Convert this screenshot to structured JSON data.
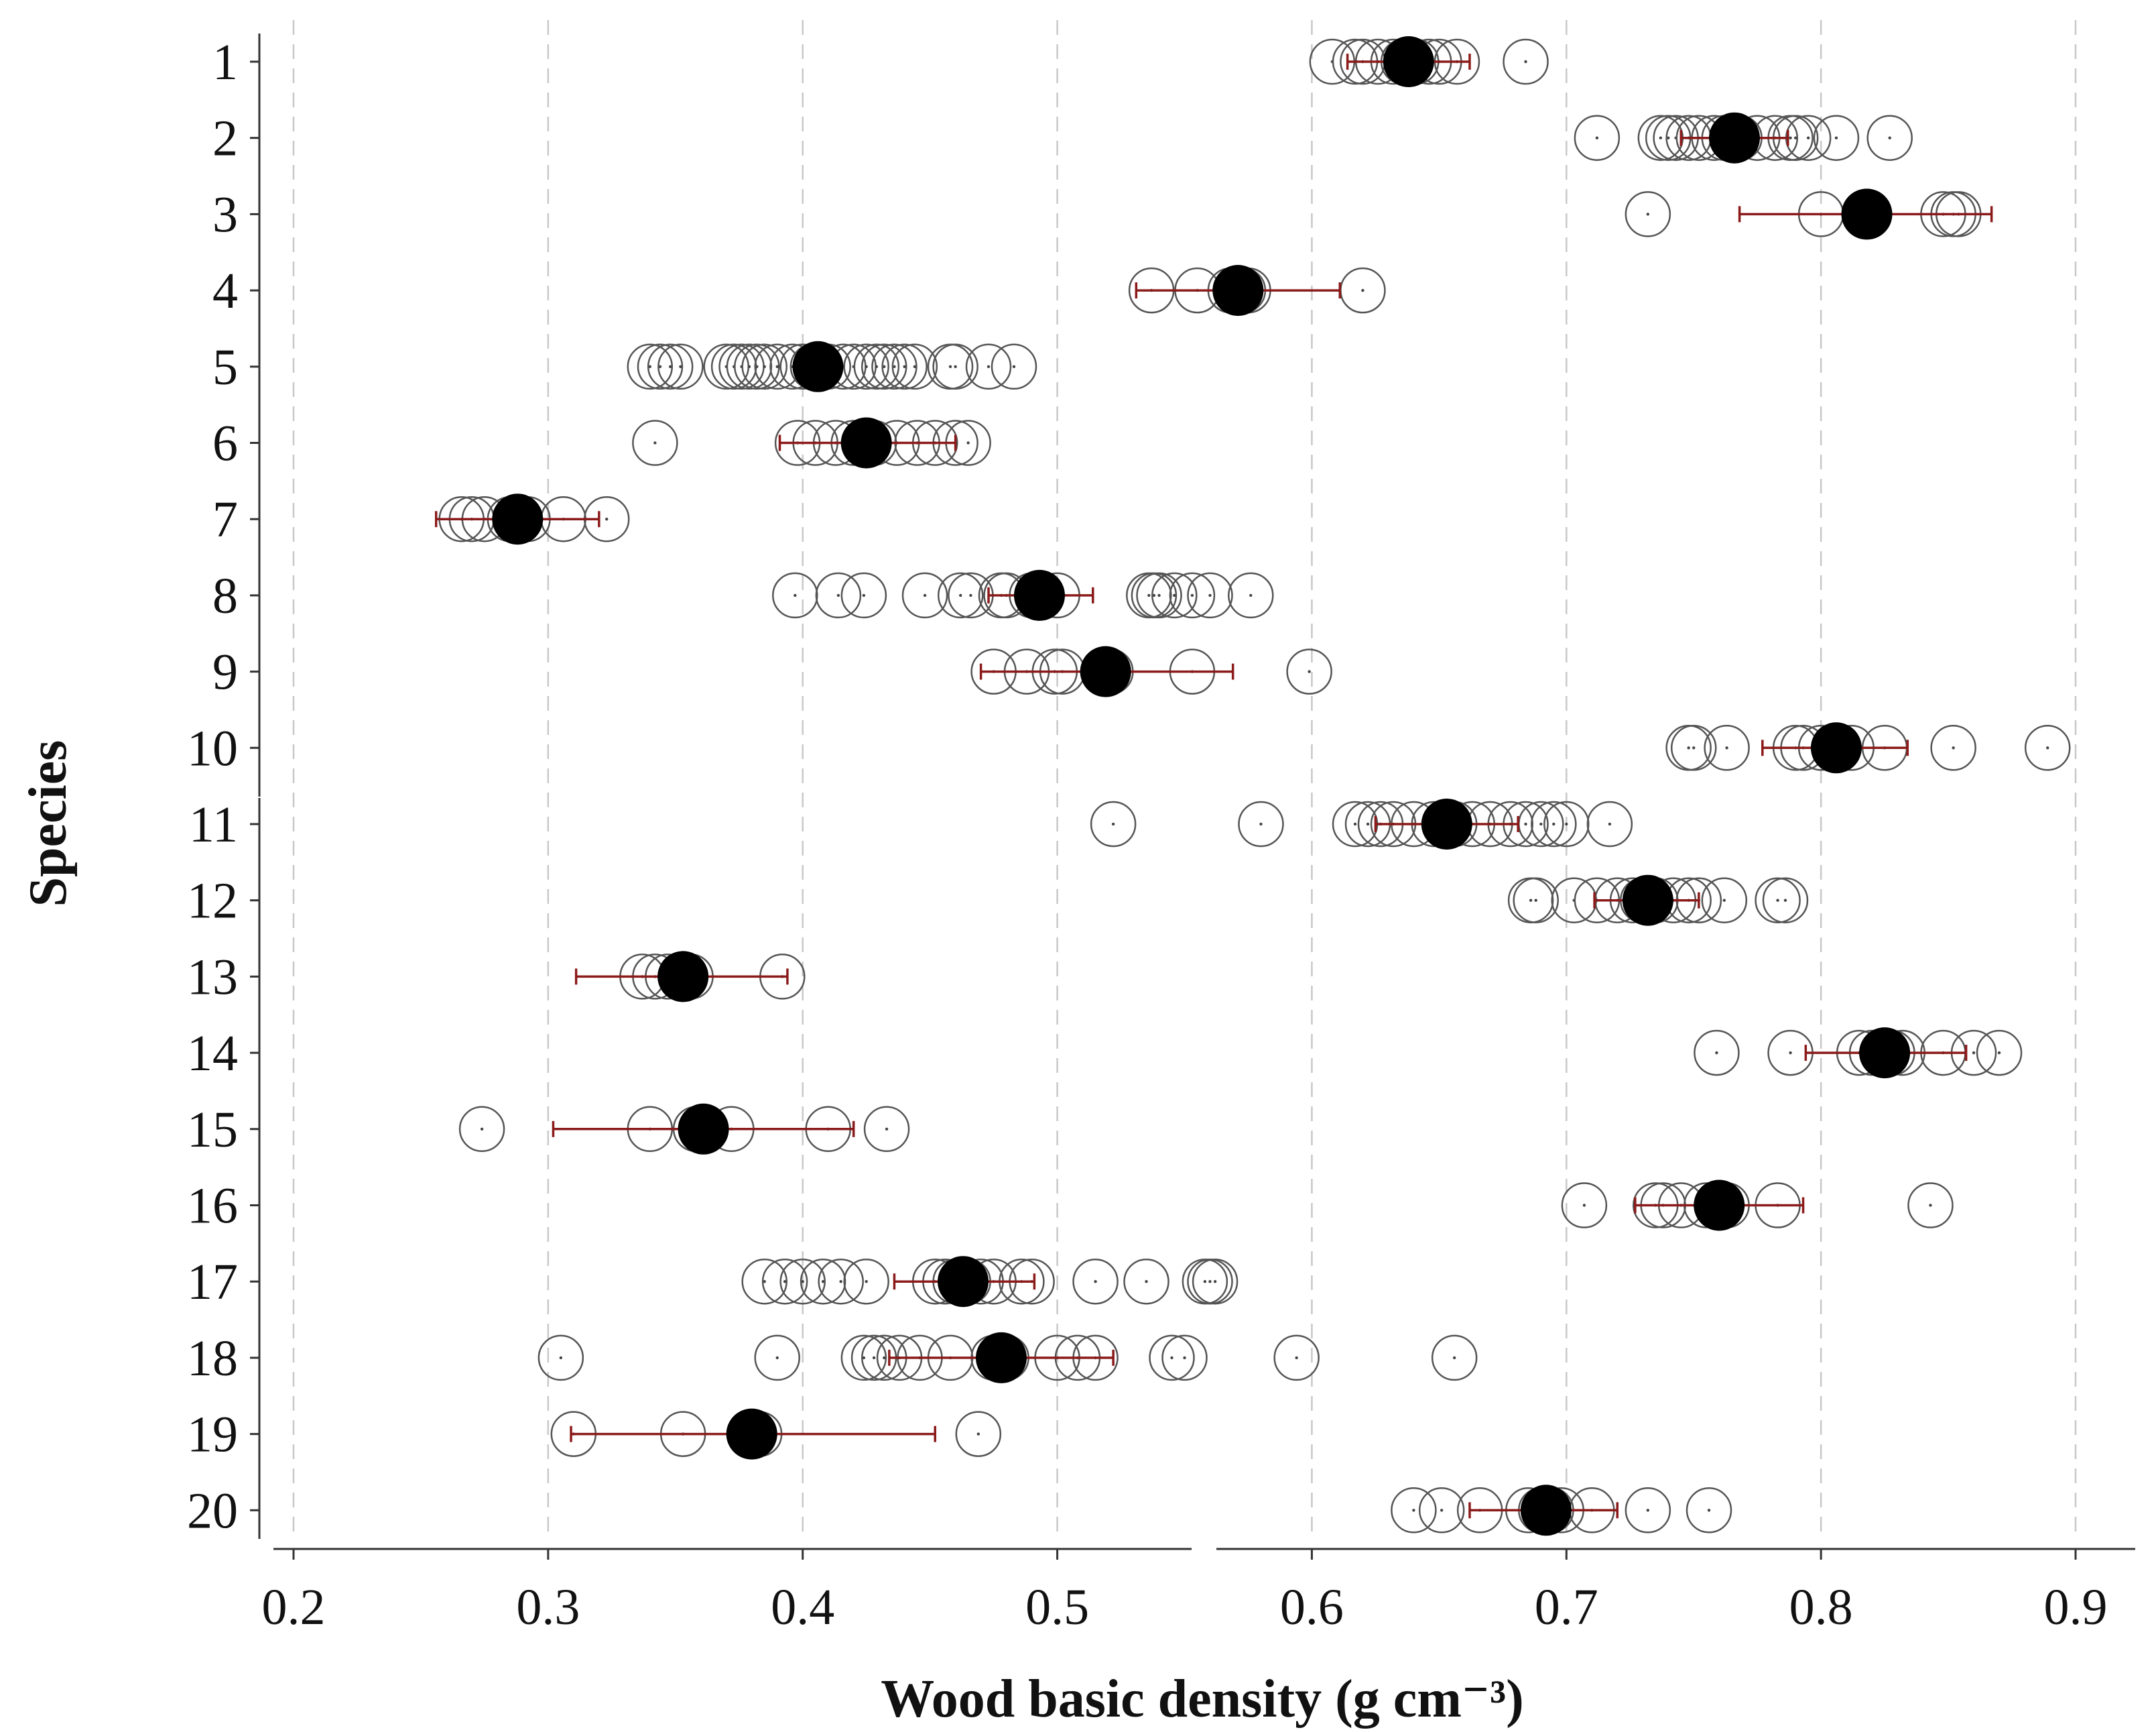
{
  "chart_data": {
    "type": "scatter",
    "title": "",
    "xlabel": "Wood basic density (g cm⁻³)",
    "ylabel": "Species",
    "xlim": [
      0.2,
      0.9
    ],
    "x_ticks": [
      "0.2",
      "0.3",
      "0.4",
      "0.5",
      "0.6",
      "0.7",
      "0.8",
      "0.9"
    ],
    "x_tick_values": [
      0.2,
      0.3,
      0.4,
      0.5,
      0.6,
      0.7,
      0.8,
      0.9
    ],
    "grid": "vertical dashed",
    "categories": [
      "1",
      "2",
      "3",
      "4",
      "5",
      "6",
      "7",
      "8",
      "9",
      "10",
      "11",
      "12",
      "13",
      "14",
      "15",
      "16",
      "17",
      "18",
      "19",
      "20"
    ],
    "series": [
      {
        "name": "1",
        "mean": 0.638,
        "err_low": 0.614,
        "err_high": 0.662,
        "observations": [
          0.608,
          0.617,
          0.62,
          0.626,
          0.632,
          0.636,
          0.641,
          0.646,
          0.65,
          0.657,
          0.684
        ]
      },
      {
        "name": "2",
        "mean": 0.766,
        "err_low": 0.745,
        "err_high": 0.787,
        "observations": [
          0.712,
          0.737,
          0.74,
          0.743,
          0.748,
          0.752,
          0.758,
          0.762,
          0.768,
          0.775,
          0.782,
          0.788,
          0.79,
          0.795,
          0.806,
          0.827
        ]
      },
      {
        "name": "3",
        "mean": 0.818,
        "err_low": 0.768,
        "err_high": 0.867,
        "observations": [
          0.732,
          0.8,
          0.818,
          0.848,
          0.852,
          0.854
        ]
      },
      {
        "name": "4",
        "mean": 0.571,
        "err_low": 0.531,
        "err_high": 0.611,
        "observations": [
          0.537,
          0.555,
          0.568,
          0.573,
          0.575,
          0.62
        ]
      },
      {
        "name": "5",
        "mean": 0.406,
        "err_low": 0.406,
        "err_high": 0.406,
        "observations": [
          0.34,
          0.344,
          0.348,
          0.352,
          0.37,
          0.373,
          0.376,
          0.379,
          0.382,
          0.385,
          0.39,
          0.396,
          0.4,
          0.404,
          0.41,
          0.416,
          0.42,
          0.425,
          0.429,
          0.432,
          0.436,
          0.44,
          0.444,
          0.458,
          0.46,
          0.473,
          0.483
        ]
      },
      {
        "name": "6",
        "mean": 0.425,
        "err_low": 0.391,
        "err_high": 0.46,
        "observations": [
          0.342,
          0.398,
          0.405,
          0.413,
          0.42,
          0.428,
          0.437,
          0.445,
          0.452,
          0.46,
          0.465
        ]
      },
      {
        "name": "7",
        "mean": 0.288,
        "err_low": 0.256,
        "err_high": 0.32,
        "observations": [
          0.266,
          0.27,
          0.275,
          0.285,
          0.292,
          0.306,
          0.323
        ]
      },
      {
        "name": "8",
        "mean": 0.493,
        "err_low": 0.473,
        "err_high": 0.514,
        "observations": [
          0.397,
          0.414,
          0.424,
          0.448,
          0.462,
          0.466,
          0.478,
          0.48,
          0.49,
          0.5,
          0.536,
          0.538,
          0.54,
          0.546,
          0.553,
          0.56,
          0.576
        ]
      },
      {
        "name": "9",
        "mean": 0.519,
        "err_low": 0.47,
        "err_high": 0.569,
        "observations": [
          0.475,
          0.488,
          0.499,
          0.502,
          0.518,
          0.521,
          0.553,
          0.599
        ]
      },
      {
        "name": "10",
        "mean": 0.806,
        "err_low": 0.777,
        "err_high": 0.834,
        "observations": [
          0.748,
          0.75,
          0.763,
          0.79,
          0.793,
          0.8,
          0.812,
          0.825,
          0.852,
          0.889
        ]
      },
      {
        "name": "11",
        "mean": 0.653,
        "err_low": 0.625,
        "err_high": 0.681,
        "observations": [
          0.522,
          0.58,
          0.617,
          0.622,
          0.627,
          0.632,
          0.64,
          0.648,
          0.656,
          0.663,
          0.67,
          0.678,
          0.684,
          0.69,
          0.695,
          0.7,
          0.717
        ]
      },
      {
        "name": "12",
        "mean": 0.732,
        "err_low": 0.711,
        "err_high": 0.752,
        "observations": [
          0.686,
          0.688,
          0.703,
          0.712,
          0.72,
          0.726,
          0.73,
          0.735,
          0.742,
          0.748,
          0.752,
          0.762,
          0.783,
          0.786
        ]
      },
      {
        "name": "13",
        "mean": 0.353,
        "err_low": 0.311,
        "err_high": 0.394,
        "observations": [
          0.337,
          0.342,
          0.347,
          0.352,
          0.356,
          0.392
        ]
      },
      {
        "name": "14",
        "mean": 0.825,
        "err_low": 0.794,
        "err_high": 0.857,
        "observations": [
          0.759,
          0.788,
          0.815,
          0.82,
          0.824,
          0.828,
          0.832,
          0.848,
          0.86,
          0.87
        ]
      },
      {
        "name": "15",
        "mean": 0.361,
        "err_low": 0.302,
        "err_high": 0.42,
        "observations": [
          0.274,
          0.34,
          0.358,
          0.372,
          0.41,
          0.433
        ]
      },
      {
        "name": "16",
        "mean": 0.76,
        "err_low": 0.727,
        "err_high": 0.793,
        "observations": [
          0.707,
          0.735,
          0.738,
          0.745,
          0.755,
          0.76,
          0.763,
          0.783,
          0.843
        ]
      },
      {
        "name": "17",
        "mean": 0.463,
        "err_low": 0.436,
        "err_high": 0.491,
        "observations": [
          0.385,
          0.393,
          0.4,
          0.408,
          0.415,
          0.425,
          0.452,
          0.456,
          0.46,
          0.465,
          0.47,
          0.475,
          0.486,
          0.49,
          0.515,
          0.535,
          0.558,
          0.56,
          0.562
        ]
      },
      {
        "name": "18",
        "mean": 0.478,
        "err_low": 0.434,
        "err_high": 0.522,
        "observations": [
          0.305,
          0.39,
          0.424,
          0.428,
          0.432,
          0.438,
          0.446,
          0.458,
          0.475,
          0.48,
          0.5,
          0.508,
          0.515,
          0.545,
          0.55,
          0.594,
          0.656
        ]
      },
      {
        "name": "19",
        "mean": 0.38,
        "err_low": 0.309,
        "err_high": 0.452,
        "observations": [
          0.31,
          0.353,
          0.379,
          0.383,
          0.469
        ]
      },
      {
        "name": "20",
        "mean": 0.692,
        "err_low": 0.662,
        "err_high": 0.72,
        "observations": [
          0.64,
          0.651,
          0.666,
          0.685,
          0.69,
          0.694,
          0.698,
          0.71,
          0.732,
          0.756
        ]
      }
    ]
  }
}
